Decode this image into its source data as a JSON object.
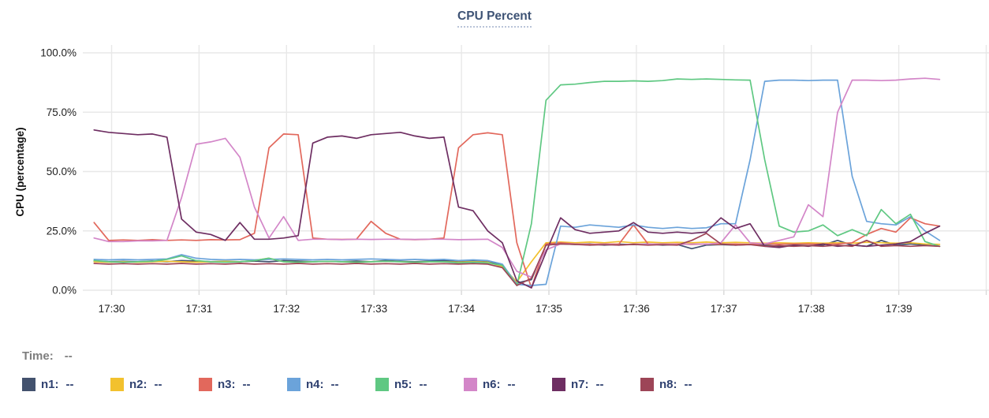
{
  "title": {
    "text": "CPU Percent"
  },
  "time_readout": {
    "label": "Time:",
    "value": "--"
  },
  "legend": {
    "items": [
      {
        "id": "n1",
        "label": "n1:",
        "value": "--",
        "color": "#43526e"
      },
      {
        "id": "n2",
        "label": "n2:",
        "value": "--",
        "color": "#f2c12e"
      },
      {
        "id": "n3",
        "label": "n3:",
        "value": "--",
        "color": "#e2685c"
      },
      {
        "id": "n4",
        "label": "n4:",
        "value": "--",
        "color": "#6ba3da"
      },
      {
        "id": "n5",
        "label": "n5:",
        "value": "--",
        "color": "#5fc882"
      },
      {
        "id": "n6",
        "label": "n6:",
        "value": "--",
        "color": "#d386c8"
      },
      {
        "id": "n7",
        "label": "n7:",
        "value": "--",
        "color": "#6e2e62"
      },
      {
        "id": "n8",
        "label": "n8:",
        "value": "--",
        "color": "#9d4557"
      }
    ]
  },
  "chart_data": {
    "type": "line",
    "title": "CPU Percent",
    "xlabel": "",
    "ylabel": "CPU (percentage)",
    "grid": true,
    "legend_position": "bottom",
    "x_axis": {
      "unit": "time HH:MM",
      "tick_labels": [
        "17:30",
        "17:31",
        "17:32",
        "17:33",
        "17:34",
        "17:35",
        "17:36",
        "17:37",
        "17:38",
        "17:39"
      ],
      "tick_minutes": [
        30,
        31,
        32,
        33,
        34,
        35,
        36,
        37,
        38,
        39
      ],
      "gridline_minutes": [
        30,
        31,
        32,
        33,
        34,
        35,
        36,
        37,
        38,
        39,
        40
      ],
      "min_minutes": 29.67,
      "max_minutes": 40.05
    },
    "y_axis": {
      "ticks": [
        0,
        25,
        50,
        75,
        100
      ],
      "tick_labels": [
        "0.0%",
        "25.0%",
        "50.0%",
        "75.0%",
        "100.0%"
      ],
      "min": 0,
      "max": 100
    },
    "x_start_min": 29.8,
    "x_step_min": 0.166667,
    "series": [
      {
        "name": "n1",
        "color": "#43526e",
        "values": [
          12.3,
          12,
          12.2,
          12,
          12.3,
          12,
          12.5,
          12.3,
          12,
          12.2,
          12,
          12.3,
          12,
          12.5,
          12.3,
          12,
          12.2,
          12,
          12.3,
          12,
          12.5,
          12.2,
          12,
          12.3,
          12.5,
          12,
          12.2,
          12,
          10.5,
          3,
          4.5,
          19,
          19.5,
          19.3,
          19.5,
          19,
          19.4,
          19.2,
          19.5,
          19,
          19.3,
          17.5,
          19,
          19.2,
          19,
          19.3,
          19,
          18.5,
          19,
          18.8,
          19,
          21,
          19,
          18.5,
          21,
          19,
          19.5,
          19,
          18.5
        ]
      },
      {
        "name": "n2",
        "color": "#f2c12e",
        "values": [
          12,
          11.8,
          12,
          11.8,
          12,
          12.2,
          12,
          11.8,
          12,
          12.2,
          12,
          12.5,
          13.5,
          12,
          11.8,
          12,
          12.2,
          12,
          11.8,
          12,
          12.2,
          12,
          11.8,
          12,
          12,
          11.8,
          12,
          11.8,
          10,
          3.5,
          12,
          20,
          20.3,
          20,
          20.3,
          20,
          20.5,
          20,
          20.3,
          20,
          20.2,
          20,
          20.3,
          20,
          20.2,
          20,
          19.8,
          20,
          19.8,
          20,
          19.8,
          20,
          19.8,
          20.2,
          20,
          19.8,
          20,
          19.5,
          19.3
        ]
      },
      {
        "name": "n3",
        "color": "#e2685c",
        "values": [
          28.5,
          21,
          21.2,
          21,
          21.3,
          21,
          21.2,
          21,
          21.3,
          21.2,
          21.3,
          24,
          60,
          65.8,
          65.5,
          22,
          21.5,
          21.4,
          21.5,
          29,
          24,
          21.5,
          21.3,
          21.5,
          22,
          60,
          65.5,
          66.3,
          65.5,
          20,
          1,
          19.5,
          20,
          19.5,
          19.3,
          19.5,
          19.4,
          27.5,
          19.5,
          19.4,
          19.5,
          19.3,
          19.5,
          19.4,
          19.5,
          19.3,
          19.5,
          19.4,
          19.5,
          19.5,
          19.4,
          19.5,
          20,
          23.5,
          26,
          24.5,
          30.5,
          28,
          27
        ]
      },
      {
        "name": "n4",
        "color": "#6ba3da",
        "values": [
          13,
          12.8,
          13,
          12.8,
          13,
          13.2,
          15,
          13.5,
          13,
          12.8,
          13,
          12.8,
          13,
          13.2,
          13,
          12.8,
          13,
          12.8,
          13,
          13.2,
          13,
          12.8,
          13,
          12.8,
          13,
          12.5,
          12.8,
          12.5,
          11,
          2.5,
          2,
          2.5,
          27,
          26.5,
          27.5,
          27,
          26.5,
          27.5,
          26.5,
          26,
          26.5,
          26,
          26.3,
          28,
          28,
          55,
          88,
          88.5,
          88.5,
          88.3,
          88.5,
          88.5,
          48,
          29,
          28,
          27.5,
          31,
          25,
          21
        ]
      },
      {
        "name": "n5",
        "color": "#5fc882",
        "values": [
          12.5,
          12,
          11.8,
          12,
          12.2,
          13,
          14.5,
          12.5,
          12,
          11.8,
          12,
          12.5,
          13.5,
          12,
          11.8,
          12,
          12.2,
          12,
          11.8,
          12,
          12.2,
          12,
          11.8,
          12,
          12,
          11.5,
          11.8,
          11.5,
          10.5,
          2,
          28,
          80,
          86.5,
          86.8,
          87.5,
          88,
          88,
          88.2,
          88,
          88.3,
          89,
          88.8,
          89,
          88.8,
          88.6,
          88.5,
          55,
          27,
          24.5,
          25,
          27.5,
          23,
          25.5,
          23,
          34,
          28,
          32,
          20.5,
          18.5
        ]
      },
      {
        "name": "n6",
        "color": "#d386c8",
        "values": [
          22,
          20.5,
          20.5,
          20.8,
          20.8,
          21,
          39,
          61.5,
          62.5,
          64,
          56,
          35,
          22,
          31,
          21,
          21.5,
          21.5,
          21.3,
          21.5,
          21.4,
          21.5,
          21.5,
          21.4,
          21.5,
          21.5,
          21.3,
          21.4,
          21.5,
          18,
          8,
          5.5,
          17,
          19.5,
          19.5,
          19,
          19.5,
          19,
          19.5,
          19.3,
          19.5,
          19.2,
          19.5,
          19.4,
          20,
          27.5,
          20,
          19.5,
          21,
          22.5,
          36,
          31,
          75,
          88.5,
          88.5,
          88.3,
          88.5,
          89,
          89.3,
          88.8
        ]
      },
      {
        "name": "n7",
        "color": "#6e2e62",
        "values": [
          67.5,
          66.5,
          66,
          65.5,
          65.8,
          64.5,
          30,
          24.5,
          23.5,
          21,
          28.5,
          21.5,
          21.5,
          22,
          23,
          62,
          64.5,
          65,
          64,
          65.5,
          66,
          66.5,
          65,
          64,
          64.5,
          35,
          33.5,
          25,
          20,
          4,
          1,
          16,
          30.5,
          25.5,
          24,
          24.5,
          25,
          28.5,
          24.5,
          24,
          24.5,
          24,
          24.5,
          30.5,
          26,
          28,
          18.5,
          18,
          19,
          18.5,
          19.5,
          18.5,
          19,
          18.5,
          19,
          19.5,
          20.5,
          24,
          27
        ]
      },
      {
        "name": "n8",
        "color": "#9d4557",
        "values": [
          11.3,
          11,
          11.2,
          11,
          11.2,
          11,
          11.3,
          11,
          11.2,
          11,
          11.3,
          11,
          11.2,
          11,
          11.3,
          11,
          11.2,
          11,
          11.3,
          11,
          11.2,
          11,
          11.3,
          11,
          11.2,
          11,
          11.2,
          11,
          9.5,
          2,
          5,
          19,
          19.5,
          19.3,
          19,
          19.2,
          19,
          19.3,
          19,
          19.2,
          19,
          21,
          24,
          19.5,
          19,
          19.2,
          18.5,
          18.8,
          18.5,
          18.8,
          18.5,
          19,
          18.5,
          21,
          18.5,
          18.8,
          18.5,
          18.8,
          18.5
        ]
      }
    ]
  },
  "style": {
    "grid_color": "#e8e8e8",
    "tick_mark_color": "#d9d9d9",
    "axis_text_color": "#212121",
    "axis_title_color": "#111111"
  }
}
